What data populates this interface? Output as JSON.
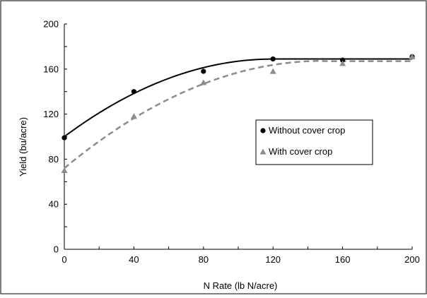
{
  "colors": {
    "without_cover": "#000000",
    "with_cover": "#8c8c8c",
    "axis": "#000000",
    "frame": "#000000",
    "background": "#ffffff"
  },
  "chart_data": {
    "type": "scatter",
    "title": "",
    "xlabel": "N Rate (lb N/acre)",
    "ylabel": "Yield (bu/acre)",
    "xlim": [
      0,
      200
    ],
    "ylim": [
      0,
      200
    ],
    "x_ticks": [
      0,
      40,
      80,
      120,
      160,
      200
    ],
    "y_ticks": [
      0,
      40,
      80,
      120,
      160,
      200
    ],
    "x_tick_labels": [
      "0",
      "40",
      "80",
      "120",
      "160",
      "200"
    ],
    "y_tick_labels": [
      "0",
      "40",
      "80",
      "120",
      "160",
      "200"
    ],
    "grid": false,
    "legend_position": "right-middle",
    "series": [
      {
        "name": "Without cover crop",
        "marker": "circle",
        "fit_line": "solid",
        "x": [
          0,
          40,
          80,
          120,
          160,
          200
        ],
        "y": [
          99,
          140,
          158,
          169,
          168,
          171
        ],
        "fit": {
          "type": "quadratic-plateau",
          "intercept": 100,
          "b1": 1.15,
          "b2": -0.0048,
          "join_x": 120,
          "plateau": 169
        }
      },
      {
        "name": "With cover crop",
        "marker": "triangle",
        "fit_line": "dashed",
        "x": [
          0,
          40,
          80,
          120,
          160,
          200
        ],
        "y": [
          70,
          118,
          148,
          158,
          165,
          171
        ],
        "fit": {
          "type": "quadratic-plateau",
          "intercept": 72,
          "b1": 1.28,
          "b2": -0.0043,
          "join_x": 149,
          "plateau": 167
        }
      }
    ]
  }
}
